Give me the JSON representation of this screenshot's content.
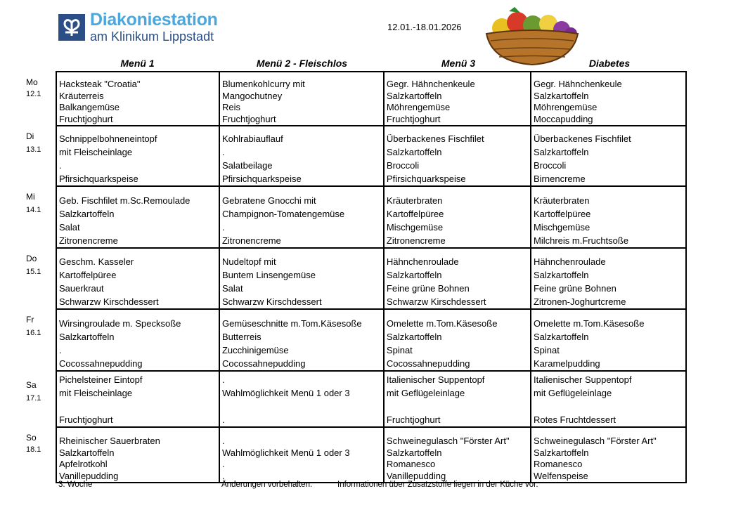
{
  "header": {
    "logo_title": "Diakoniestation",
    "logo_subtitle": "am Klinikum Lippstadt",
    "date_range": "12.01.-18.01.2026",
    "illustration": "fruit-basket"
  },
  "colors": {
    "logo_blue": "#4aa8df",
    "logo_navy": "#2a4e85"
  },
  "columns": [
    "Menü 1",
    "Menü 2 -  Fleischlos",
    "Menü 3",
    "Diabetes"
  ],
  "days": [
    {
      "day": "Mo",
      "date": "12.1",
      "cells": [
        [
          "Hacksteak \"Croatia\"",
          "Kräuterreis",
          "Balkangemüse",
          "Fruchtjoghurt"
        ],
        [
          "Blumenkohlcurry mit",
          "Mangochutney",
          "Reis",
          "Fruchtjoghurt"
        ],
        [
          "Gegr. Hähnchenkeule",
          "Salzkartoffeln",
          "Möhrengemüse",
          "Fruchtjoghurt"
        ],
        [
          "Gegr. Hähnchenkeule",
          "Salzkartoffeln",
          "Möhrengemüse",
          "Moccapudding"
        ]
      ]
    },
    {
      "day": "Di",
      "date": "13.1",
      "cells": [
        [
          "Schnippelbohneneintopf",
          "mit Fleischeinlage",
          ".",
          "Pfirsichquarkspeise"
        ],
        [
          "Kohlrabiauflauf",
          ".",
          "Salatbeilage",
          "Pfirsichquarkspeise"
        ],
        [
          "Überbackenes Fischfilet",
          "Salzkartoffeln",
          "Broccoli",
          "Pfirsichquarkspeise"
        ],
        [
          "Überbackenes Fischfilet",
          "Salzkartoffeln",
          "Broccoli",
          "Birnencreme"
        ]
      ]
    },
    {
      "day": "Mi",
      "date": "14.1",
      "cells": [
        [
          "Geb. Fischfilet m.Sc.Remoulade",
          "Salzkartoffeln",
          "Salat",
          "Zitronencreme"
        ],
        [
          "Gebratene Gnocchi mit",
          "Champignon-Tomatengemüse",
          ".",
          "Zitronencreme"
        ],
        [
          "Kräuterbraten",
          "Kartoffelpüree",
          "Mischgemüse",
          "Zitronencreme"
        ],
        [
          "Kräuterbraten",
          "Kartoffelpüree",
          "Mischgemüse",
          "Milchreis m.Fruchtsoße"
        ]
      ]
    },
    {
      "day": "Do",
      "date": "15.1",
      "cells": [
        [
          "Geschm. Kasseler",
          "Kartoffelpüree",
          "Sauerkraut",
          "Schwarzw Kirschdessert"
        ],
        [
          "Nudeltopf mit",
          "Buntem Linsengemüse",
          "Salat",
          "Schwarzw Kirschdessert"
        ],
        [
          "Hähnchenroulade",
          "Salzkartoffeln",
          "Feine grüne Bohnen",
          "Schwarzw Kirschdessert"
        ],
        [
          "Hähnchenroulade",
          "Salzkartoffeln",
          "Feine grüne Bohnen",
          "Zitronen-Joghurtcreme"
        ]
      ]
    },
    {
      "day": "Fr",
      "date": "16.1",
      "cells": [
        [
          "Wirsingroulade m. Specksoße",
          "Salzkartoffeln",
          ".",
          "Cocossahnepudding"
        ],
        [
          "Gemüseschnitte m.Tom.Käsesoße",
          "Butterreis",
          "Zucchinigemüse",
          "Cocossahnepudding"
        ],
        [
          "Omelette m.Tom.Käsesoße",
          "Salzkartoffeln",
          "Spinat",
          "Cocossahnepudding"
        ],
        [
          "Omelette m.Tom.Käsesoße",
          "Salzkartoffeln",
          "Spinat",
          "Karamelpudding"
        ]
      ]
    },
    {
      "day": "Sa",
      "date": "17.1",
      "cells": [
        [
          "Pichelsteiner Eintopf",
          "mit Fleischeinlage",
          "",
          "Fruchtjoghurt"
        ],
        [
          ".",
          "Wahlmöglichkeit Menü 1 oder 3",
          "",
          "."
        ],
        [
          "Italienischer Suppentopf",
          "mit Geflügeleinlage",
          "",
          "Fruchtjoghurt"
        ],
        [
          "Italienischer Suppentopf",
          "mit Geflügeleinlage",
          "",
          "Rotes Fruchtdessert"
        ]
      ]
    },
    {
      "day": "So",
      "date": "18.1",
      "cells": [
        [
          "Rheinischer Sauerbraten",
          "Salzkartoffeln",
          "Apfelrotkohl",
          "Vanillepudding"
        ],
        [
          ".",
          "Wahlmöglichkeit Menü 1 oder 3",
          ".",
          "."
        ],
        [
          "Schweinegulasch \"Förster Art\"",
          "Salzkartoffeln",
          "Romanesco",
          "Vanillepudding"
        ],
        [
          "Schweinegulasch \"Förster Art\"",
          "Salzkartoffeln",
          "Romanesco",
          "Welfenspeise"
        ]
      ]
    }
  ],
  "footer": {
    "week": "3. Woche",
    "changes": "Änderungen vorbehalten.",
    "info": "Informationen über Zusatzstoffe liegen in der Küche vor."
  }
}
